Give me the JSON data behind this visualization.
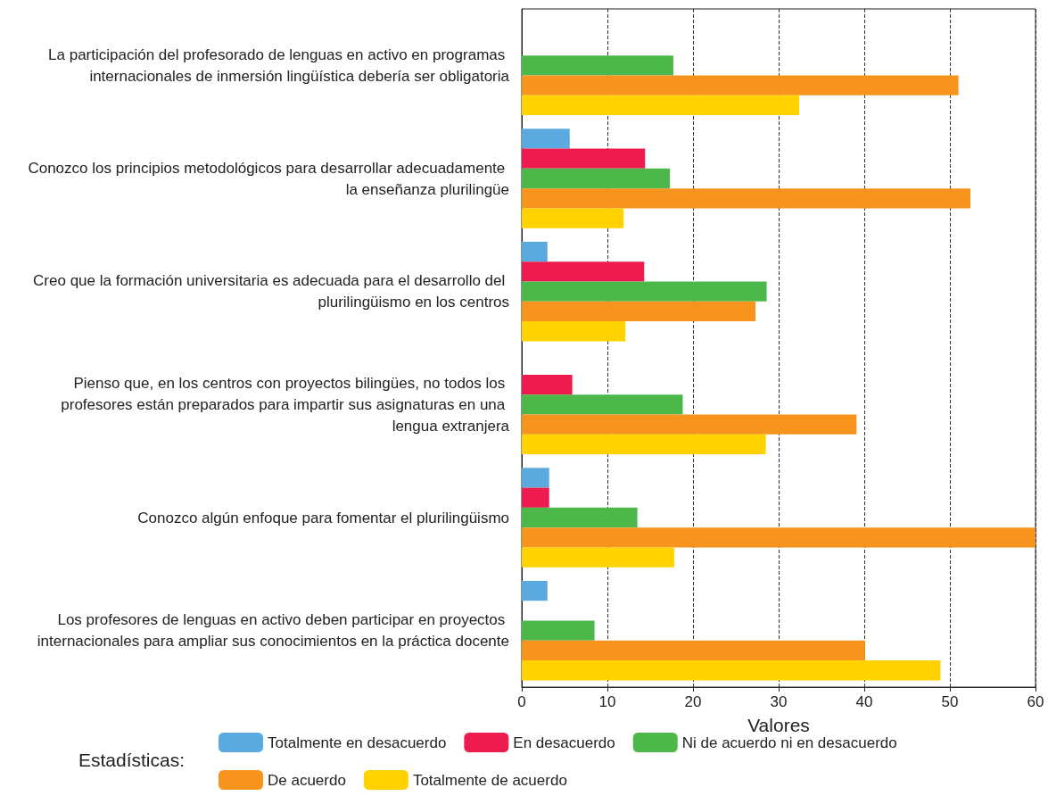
{
  "chart_data": {
    "type": "bar",
    "orientation": "horizontal",
    "xlabel": "Valores",
    "legend_title": "Estadísticas:",
    "legend": "bottom",
    "grid": "x",
    "categories": [
      "La participación del profesorado de lenguas en activo en programas internacionales de inmersión lingüística debería ser obligatoria",
      "Conozco los principios metodológicos para desarrollar adecuadamente la enseñanza plurilingüe",
      "Creo que la formación universitaria es adecuada para el desarrollo del plurilingüismo en los centros",
      "Pienso que, en los centros con proyectos bilingües, no todos los profesores están preparados para impartir sus asignaturas en una lengua extranjera",
      "Conozco algún enfoque para fomentar el plurilingüismo",
      "Los profesores de lenguas en activo deben participar en proyectos internacionales para ampliar sus conocimientos en la práctica docente"
    ],
    "xlim": [
      0,
      60
    ],
    "xticks": [
      0,
      10,
      20,
      30,
      40,
      50,
      60
    ],
    "series": [
      {
        "name": "Totalmente en desacuerdo",
        "color": "#5aaae0",
        "values": [
          null,
          5.6,
          3,
          null,
          3.2,
          3
        ]
      },
      {
        "name": "En desacuerdo",
        "color": "#ee1c4e",
        "values": [
          null,
          14.4,
          14.3,
          5.9,
          3.2,
          null
        ]
      },
      {
        "name": "Ni de acuerdo ni en desacuerdo",
        "color": "#4cb84a",
        "values": [
          17.7,
          17.3,
          28.6,
          18.8,
          13.5,
          8.5
        ]
      },
      {
        "name": "De acuerdo",
        "color": "#f7941d",
        "values": [
          51,
          52.4,
          27.3,
          39.1,
          60,
          40.1
        ]
      },
      {
        "name": "Totalmente de acuerdo",
        "color": "#ffd200",
        "values": [
          32.4,
          11.9,
          12.1,
          28.5,
          17.8,
          48.9
        ]
      }
    ]
  }
}
